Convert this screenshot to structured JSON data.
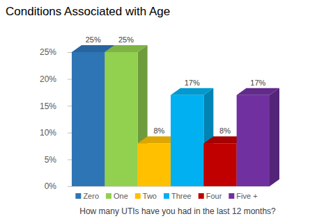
{
  "chart_data": {
    "type": "bar",
    "title": "Conditions Associated with Age",
    "x_label": "How many UTIs have you had in the last 12 months?",
    "categories": [
      "Zero",
      "One",
      "Two",
      "Three",
      "Four",
      "Five +"
    ],
    "values": [
      25,
      25,
      8,
      17,
      8,
      17
    ],
    "value_labels": [
      "25%",
      "25%",
      "8%",
      "17%",
      "8%",
      "17%"
    ],
    "colors": [
      "#2e75b6",
      "#92d050",
      "#ffc000",
      "#00b0f0",
      "#c00000",
      "#7030a0"
    ],
    "ylim": [
      0,
      25
    ],
    "yticks": [
      {
        "value": 0,
        "label": "0%"
      },
      {
        "value": 5,
        "label": "5%"
      },
      {
        "value": 10,
        "label": "10%"
      },
      {
        "value": 15,
        "label": "15%"
      },
      {
        "value": 20,
        "label": "20%"
      },
      {
        "value": 25,
        "label": "25%"
      }
    ],
    "grid": false,
    "legend": "bottom",
    "data_labels": true,
    "tick_labels": "y"
  }
}
